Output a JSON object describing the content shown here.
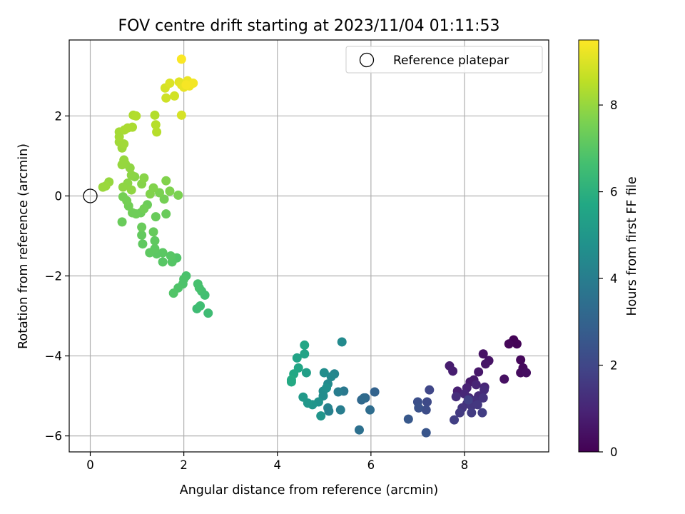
{
  "chart_data": {
    "type": "scatter",
    "title": "FOV centre drift starting at 2023/11/04 01:11:53",
    "xlabel": "Angular distance from reference (arcmin)",
    "ylabel": "Rotation from reference (arcmin)",
    "xlim": [
      -0.45,
      9.8
    ],
    "ylim": [
      -6.4,
      3.9
    ],
    "xticks": [
      0,
      2,
      4,
      6,
      8
    ],
    "yticks": [
      -6,
      -4,
      -2,
      0,
      2
    ],
    "grid": true,
    "legend": {
      "placement": "top-right",
      "label": "Reference platepar"
    },
    "reference_point": {
      "x": 0,
      "y": 0
    },
    "colorbar": {
      "label": "Hours from first FF file",
      "range": [
        0,
        9.5
      ],
      "ticks": [
        0,
        2,
        4,
        6,
        8
      ],
      "colormap": "viridis"
    },
    "points": [
      {
        "x": 9.05,
        "y": -3.6,
        "c": 0.05
      },
      {
        "x": 9.12,
        "y": -3.7,
        "c": 0.1
      },
      {
        "x": 8.95,
        "y": -3.7,
        "c": 0.15
      },
      {
        "x": 9.2,
        "y": -4.1,
        "c": 0.2
      },
      {
        "x": 9.25,
        "y": -4.3,
        "c": 0.25
      },
      {
        "x": 9.2,
        "y": -4.42,
        "c": 0.3
      },
      {
        "x": 9.32,
        "y": -4.42,
        "c": 0.35
      },
      {
        "x": 8.85,
        "y": -4.58,
        "c": 0.4
      },
      {
        "x": 8.4,
        "y": -3.95,
        "c": 0.45
      },
      {
        "x": 8.52,
        "y": -4.12,
        "c": 0.5
      },
      {
        "x": 8.45,
        "y": -4.2,
        "c": 0.55
      },
      {
        "x": 8.3,
        "y": -4.4,
        "c": 0.6
      },
      {
        "x": 8.2,
        "y": -4.6,
        "c": 0.65
      },
      {
        "x": 8.12,
        "y": -4.65,
        "c": 0.7
      },
      {
        "x": 7.68,
        "y": -4.25,
        "c": 0.75
      },
      {
        "x": 7.75,
        "y": -4.38,
        "c": 0.8
      },
      {
        "x": 7.85,
        "y": -4.88,
        "c": 0.85
      },
      {
        "x": 8.05,
        "y": -4.8,
        "c": 0.9
      },
      {
        "x": 8.25,
        "y": -4.72,
        "c": 0.95
      },
      {
        "x": 8.43,
        "y": -4.78,
        "c": 1.0
      },
      {
        "x": 8.0,
        "y": -4.95,
        "c": 1.05
      },
      {
        "x": 8.1,
        "y": -5.05,
        "c": 1.1
      },
      {
        "x": 8.3,
        "y": -5.0,
        "c": 1.15
      },
      {
        "x": 8.42,
        "y": -4.85,
        "c": 1.2
      },
      {
        "x": 7.82,
        "y": -5.02,
        "c": 1.25
      },
      {
        "x": 8.22,
        "y": -5.12,
        "c": 1.3
      },
      {
        "x": 8.05,
        "y": -5.2,
        "c": 1.35
      },
      {
        "x": 8.4,
        "y": -5.05,
        "c": 1.4
      },
      {
        "x": 7.95,
        "y": -5.3,
        "c": 1.45
      },
      {
        "x": 8.15,
        "y": -5.25,
        "c": 1.5
      },
      {
        "x": 8.28,
        "y": -5.22,
        "c": 1.55
      },
      {
        "x": 7.9,
        "y": -5.42,
        "c": 1.6
      },
      {
        "x": 8.15,
        "y": -5.42,
        "c": 1.65
      },
      {
        "x": 8.38,
        "y": -5.42,
        "c": 1.7
      },
      {
        "x": 7.78,
        "y": -5.6,
        "c": 1.75
      },
      {
        "x": 8.08,
        "y": -5.1,
        "c": 1.8
      },
      {
        "x": 7.25,
        "y": -4.85,
        "c": 2.0
      },
      {
        "x": 7.2,
        "y": -5.15,
        "c": 2.1
      },
      {
        "x": 7.18,
        "y": -5.35,
        "c": 2.2
      },
      {
        "x": 7.0,
        "y": -5.15,
        "c": 2.3
      },
      {
        "x": 7.02,
        "y": -5.3,
        "c": 2.4
      },
      {
        "x": 6.8,
        "y": -5.58,
        "c": 2.6
      },
      {
        "x": 7.18,
        "y": -5.92,
        "c": 2.5
      },
      {
        "x": 6.08,
        "y": -4.9,
        "c": 3.0
      },
      {
        "x": 5.88,
        "y": -5.05,
        "c": 3.1
      },
      {
        "x": 5.8,
        "y": -5.1,
        "c": 3.2
      },
      {
        "x": 5.85,
        "y": -5.05,
        "c": 3.3
      },
      {
        "x": 5.98,
        "y": -5.35,
        "c": 3.4
      },
      {
        "x": 5.75,
        "y": -5.85,
        "c": 3.5
      },
      {
        "x": 5.38,
        "y": -3.65,
        "c": 4.5
      },
      {
        "x": 5.42,
        "y": -4.88,
        "c": 3.8
      },
      {
        "x": 5.3,
        "y": -4.9,
        "c": 4.0
      },
      {
        "x": 5.22,
        "y": -4.45,
        "c": 4.3
      },
      {
        "x": 5.15,
        "y": -4.52,
        "c": 4.4
      },
      {
        "x": 5.0,
        "y": -4.42,
        "c": 4.6
      },
      {
        "x": 5.08,
        "y": -4.7,
        "c": 4.5
      },
      {
        "x": 4.98,
        "y": -4.88,
        "c": 4.6
      },
      {
        "x": 5.05,
        "y": -4.8,
        "c": 4.7
      },
      {
        "x": 4.98,
        "y": -5.0,
        "c": 4.6
      },
      {
        "x": 4.88,
        "y": -5.15,
        "c": 4.8
      },
      {
        "x": 4.75,
        "y": -5.22,
        "c": 4.9
      },
      {
        "x": 4.65,
        "y": -5.18,
        "c": 5.0
      },
      {
        "x": 4.55,
        "y": -5.03,
        "c": 5.1
      },
      {
        "x": 5.08,
        "y": -5.3,
        "c": 4.2
      },
      {
        "x": 5.1,
        "y": -5.38,
        "c": 4.1
      },
      {
        "x": 5.35,
        "y": -5.35,
        "c": 4.0
      },
      {
        "x": 4.93,
        "y": -5.5,
        "c": 4.9
      },
      {
        "x": 4.62,
        "y": -4.42,
        "c": 5.3
      },
      {
        "x": 4.58,
        "y": -3.73,
        "c": 5.6
      },
      {
        "x": 4.58,
        "y": -3.95,
        "c": 5.5
      },
      {
        "x": 4.42,
        "y": -4.05,
        "c": 5.5
      },
      {
        "x": 4.45,
        "y": -4.3,
        "c": 5.6
      },
      {
        "x": 4.35,
        "y": -4.45,
        "c": 5.7
      },
      {
        "x": 4.3,
        "y": -4.6,
        "c": 5.8
      },
      {
        "x": 4.3,
        "y": -4.65,
        "c": 5.75
      },
      {
        "x": 2.52,
        "y": -2.93,
        "c": 6.5
      },
      {
        "x": 2.28,
        "y": -2.82,
        "c": 6.5
      },
      {
        "x": 2.35,
        "y": -2.75,
        "c": 6.55
      },
      {
        "x": 2.45,
        "y": -2.48,
        "c": 6.6
      },
      {
        "x": 2.38,
        "y": -2.38,
        "c": 6.65
      },
      {
        "x": 2.33,
        "y": -2.3,
        "c": 6.7
      },
      {
        "x": 2.3,
        "y": -2.2,
        "c": 6.7
      },
      {
        "x": 2.05,
        "y": -2.0,
        "c": 6.75
      },
      {
        "x": 2.0,
        "y": -2.08,
        "c": 6.8
      },
      {
        "x": 1.98,
        "y": -2.2,
        "c": 6.8
      },
      {
        "x": 1.88,
        "y": -2.3,
        "c": 6.85
      },
      {
        "x": 1.78,
        "y": -2.43,
        "c": 6.9
      },
      {
        "x": 1.85,
        "y": -1.55,
        "c": 6.9
      },
      {
        "x": 1.75,
        "y": -1.65,
        "c": 6.95
      },
      {
        "x": 1.72,
        "y": -1.5,
        "c": 7.0
      },
      {
        "x": 1.55,
        "y": -1.65,
        "c": 7.0
      },
      {
        "x": 1.55,
        "y": -1.42,
        "c": 7.05
      },
      {
        "x": 1.42,
        "y": -1.45,
        "c": 7.05
      },
      {
        "x": 1.38,
        "y": -1.32,
        "c": 7.1
      },
      {
        "x": 1.38,
        "y": -1.12,
        "c": 7.15
      },
      {
        "x": 1.27,
        "y": -1.42,
        "c": 7.1
      },
      {
        "x": 1.12,
        "y": -1.2,
        "c": 7.15
      },
      {
        "x": 1.1,
        "y": -0.98,
        "c": 7.2
      },
      {
        "x": 1.35,
        "y": -0.9,
        "c": 7.25
      },
      {
        "x": 1.1,
        "y": -0.78,
        "c": 7.3
      },
      {
        "x": 1.4,
        "y": -0.52,
        "c": 7.3
      },
      {
        "x": 1.22,
        "y": -0.22,
        "c": 7.35
      },
      {
        "x": 1.08,
        "y": -0.42,
        "c": 7.35
      },
      {
        "x": 0.98,
        "y": -0.45,
        "c": 7.4
      },
      {
        "x": 0.9,
        "y": -0.42,
        "c": 7.4
      },
      {
        "x": 1.15,
        "y": -0.32,
        "c": 7.45
      },
      {
        "x": 0.82,
        "y": -0.25,
        "c": 7.45
      },
      {
        "x": 0.68,
        "y": -0.65,
        "c": 7.3
      },
      {
        "x": 0.78,
        "y": -0.12,
        "c": 7.5
      },
      {
        "x": 0.7,
        "y": -0.02,
        "c": 7.5
      },
      {
        "x": 1.62,
        "y": -0.45,
        "c": 7.3
      },
      {
        "x": 1.58,
        "y": -0.08,
        "c": 7.5
      },
      {
        "x": 1.48,
        "y": 0.08,
        "c": 7.6
      },
      {
        "x": 1.88,
        "y": 0.02,
        "c": 7.6
      },
      {
        "x": 1.7,
        "y": 0.12,
        "c": 7.65
      },
      {
        "x": 1.62,
        "y": 0.38,
        "c": 7.7
      },
      {
        "x": 1.35,
        "y": 0.2,
        "c": 7.7
      },
      {
        "x": 1.28,
        "y": 0.05,
        "c": 7.7
      },
      {
        "x": 1.1,
        "y": 0.3,
        "c": 7.75
      },
      {
        "x": 1.15,
        "y": 0.45,
        "c": 7.8
      },
      {
        "x": 0.95,
        "y": 0.48,
        "c": 7.8
      },
      {
        "x": 0.88,
        "y": 0.52,
        "c": 7.85
      },
      {
        "x": 0.8,
        "y": 0.32,
        "c": 7.85
      },
      {
        "x": 0.7,
        "y": 0.22,
        "c": 7.9
      },
      {
        "x": 0.88,
        "y": 0.15,
        "c": 7.9
      },
      {
        "x": 0.85,
        "y": 0.7,
        "c": 7.9
      },
      {
        "x": 0.75,
        "y": 0.8,
        "c": 7.95
      },
      {
        "x": 0.68,
        "y": 0.78,
        "c": 8.0
      },
      {
        "x": 0.72,
        "y": 0.9,
        "c": 8.0
      },
      {
        "x": 0.4,
        "y": 0.35,
        "c": 8.0
      },
      {
        "x": 0.33,
        "y": 0.25,
        "c": 8.05
      },
      {
        "x": 0.27,
        "y": 0.22,
        "c": 8.05
      },
      {
        "x": 0.68,
        "y": 1.2,
        "c": 8.1
      },
      {
        "x": 0.72,
        "y": 1.3,
        "c": 8.15
      },
      {
        "x": 0.62,
        "y": 1.35,
        "c": 8.15
      },
      {
        "x": 0.62,
        "y": 1.48,
        "c": 8.2
      },
      {
        "x": 0.62,
        "y": 1.6,
        "c": 8.2
      },
      {
        "x": 0.73,
        "y": 1.65,
        "c": 8.25
      },
      {
        "x": 0.8,
        "y": 1.7,
        "c": 8.3
      },
      {
        "x": 0.9,
        "y": 1.72,
        "c": 8.3
      },
      {
        "x": 0.92,
        "y": 2.02,
        "c": 8.35
      },
      {
        "x": 0.98,
        "y": 2.0,
        "c": 8.4
      },
      {
        "x": 1.38,
        "y": 2.02,
        "c": 8.4
      },
      {
        "x": 1.4,
        "y": 1.78,
        "c": 8.45
      },
      {
        "x": 1.42,
        "y": 1.6,
        "c": 8.45
      },
      {
        "x": 1.95,
        "y": 2.02,
        "c": 8.9
      },
      {
        "x": 1.62,
        "y": 2.45,
        "c": 8.8
      },
      {
        "x": 1.8,
        "y": 2.5,
        "c": 8.85
      },
      {
        "x": 1.6,
        "y": 2.7,
        "c": 8.9
      },
      {
        "x": 1.7,
        "y": 2.82,
        "c": 9.0
      },
      {
        "x": 1.9,
        "y": 2.85,
        "c": 9.1
      },
      {
        "x": 1.95,
        "y": 2.78,
        "c": 9.15
      },
      {
        "x": 2.0,
        "y": 2.72,
        "c": 9.2
      },
      {
        "x": 2.08,
        "y": 2.88,
        "c": 9.25
      },
      {
        "x": 2.12,
        "y": 2.75,
        "c": 9.3
      },
      {
        "x": 2.2,
        "y": 2.82,
        "c": 9.35
      },
      {
        "x": 2.05,
        "y": 2.78,
        "c": 9.4
      },
      {
        "x": 1.95,
        "y": 3.42,
        "c": 9.45
      }
    ]
  }
}
